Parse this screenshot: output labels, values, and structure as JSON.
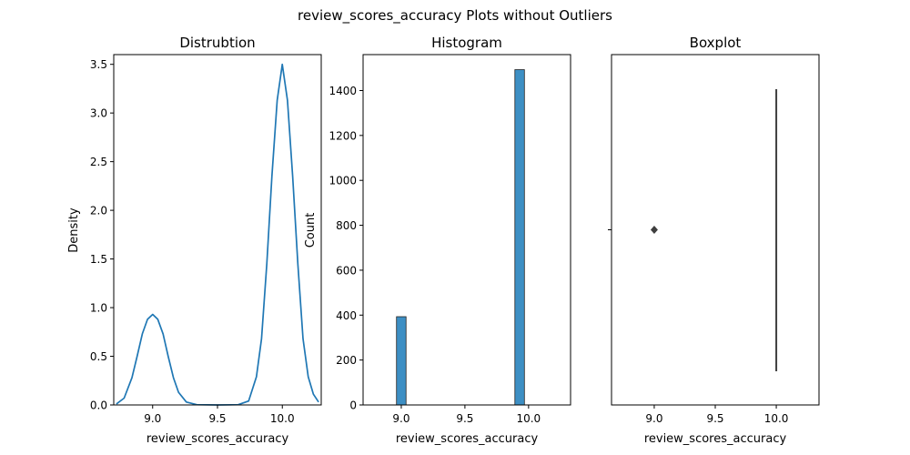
{
  "figure": {
    "suptitle": "review_scores_accuracy Plots without Outliers"
  },
  "colors": {
    "kde_line": "#1f77b4",
    "hist_bar": "#3d8fc4",
    "box_line": "#3f3f3f"
  },
  "chart_data": [
    {
      "type": "line",
      "title": "Distrubtion",
      "xlabel": "review_scores_accuracy",
      "ylabel": "Density",
      "xlim": [
        8.7,
        10.3
      ],
      "ylim": [
        0,
        3.6
      ],
      "xticks": [
        "9.0",
        "9.5",
        "10.0"
      ],
      "yticks": [
        "0.0",
        "0.5",
        "1.0",
        "1.5",
        "2.0",
        "2.5",
        "3.0",
        "3.5"
      ],
      "series": [
        {
          "x": [
            8.72,
            8.78,
            8.84,
            8.88,
            8.92,
            8.96,
            9.0,
            9.04,
            9.08,
            9.12,
            9.16,
            9.2,
            9.26,
            9.34,
            9.5,
            9.66,
            9.74,
            9.8,
            9.84,
            9.88,
            9.92,
            9.96,
            10.0,
            10.04,
            10.08,
            10.12,
            10.16,
            10.2,
            10.24,
            10.28
          ],
          "y": [
            0.01,
            0.07,
            0.28,
            0.5,
            0.73,
            0.88,
            0.93,
            0.88,
            0.73,
            0.5,
            0.28,
            0.13,
            0.03,
            0.003,
            0.0,
            0.003,
            0.04,
            0.29,
            0.68,
            1.45,
            2.35,
            3.13,
            3.5,
            3.13,
            2.35,
            1.45,
            0.68,
            0.29,
            0.11,
            0.03
          ]
        }
      ]
    },
    {
      "type": "bar",
      "title": "Histogram",
      "xlabel": "review_scores_accuracy",
      "ylabel": "Count",
      "xlim": [
        8.7,
        10.33
      ],
      "ylim": [
        0,
        1560
      ],
      "xticks": [
        "9.0",
        "9.5",
        "10.0"
      ],
      "yticks": [
        "0",
        "200",
        "400",
        "600",
        "800",
        "1000",
        "1200",
        "1400"
      ],
      "bin_width": 0.075,
      "bars": [
        {
          "x": 9.0,
          "value": 393
        },
        {
          "x": 9.93,
          "value": 1493
        }
      ]
    },
    {
      "type": "box",
      "title": "Boxplot",
      "xlabel": "review_scores_accuracy",
      "xlim": [
        8.65,
        10.35
      ],
      "xticks": [
        "9.0",
        "9.5",
        "10.0"
      ],
      "q1": 10.0,
      "median": 10.0,
      "q3": 10.0,
      "whisker_low": 10.0,
      "whisker_high": 10.0,
      "outliers": [
        9.0
      ]
    }
  ]
}
